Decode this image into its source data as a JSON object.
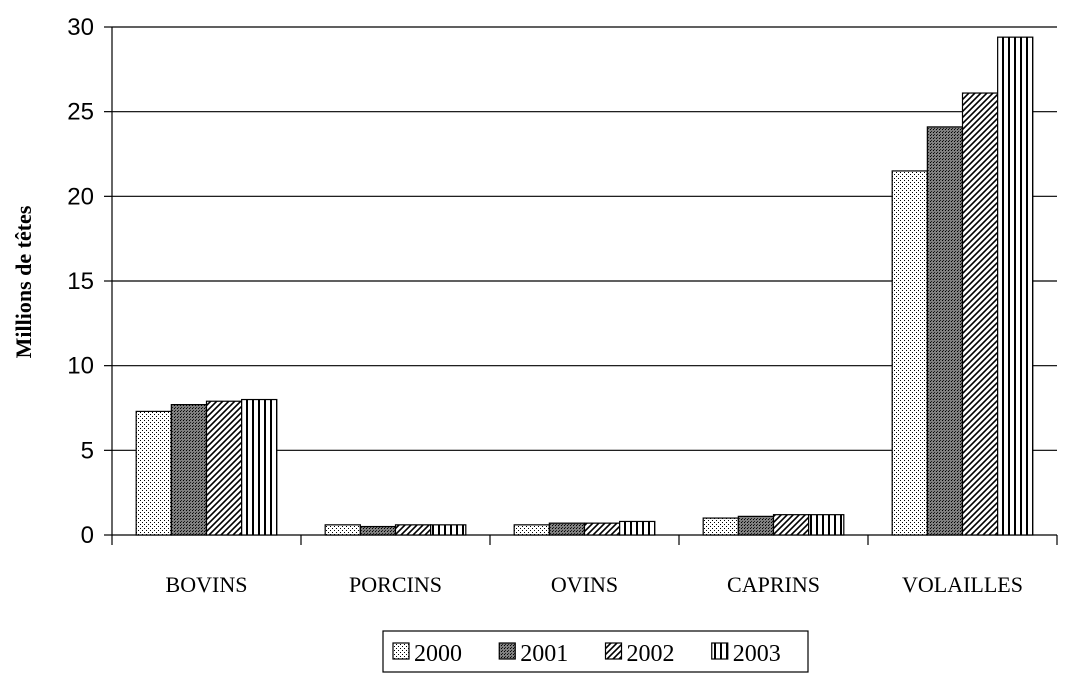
{
  "chart_data": {
    "type": "bar",
    "ylabel": "Millions de têtes",
    "xlabel": "",
    "title": "",
    "categories": [
      "BOVINS",
      "PORCINS",
      "OVINS",
      "CAPRINS",
      "VOLAILLES"
    ],
    "series": [
      {
        "name": "2000",
        "pattern": "dots",
        "values": [
          7.3,
          0.6,
          0.6,
          1.0,
          21.5
        ]
      },
      {
        "name": "2001",
        "pattern": "dense-dots",
        "values": [
          7.7,
          0.5,
          0.7,
          1.1,
          24.1
        ]
      },
      {
        "name": "2002",
        "pattern": "diagonal",
        "values": [
          7.9,
          0.6,
          0.7,
          1.2,
          26.1
        ]
      },
      {
        "name": "2003",
        "pattern": "vertical",
        "values": [
          8.0,
          0.6,
          0.8,
          1.2,
          29.4
        ]
      }
    ],
    "ylim": [
      0,
      30
    ],
    "yticks": [
      0,
      5,
      10,
      15,
      20,
      25,
      30
    ],
    "grid": true,
    "legend": "bottom"
  }
}
